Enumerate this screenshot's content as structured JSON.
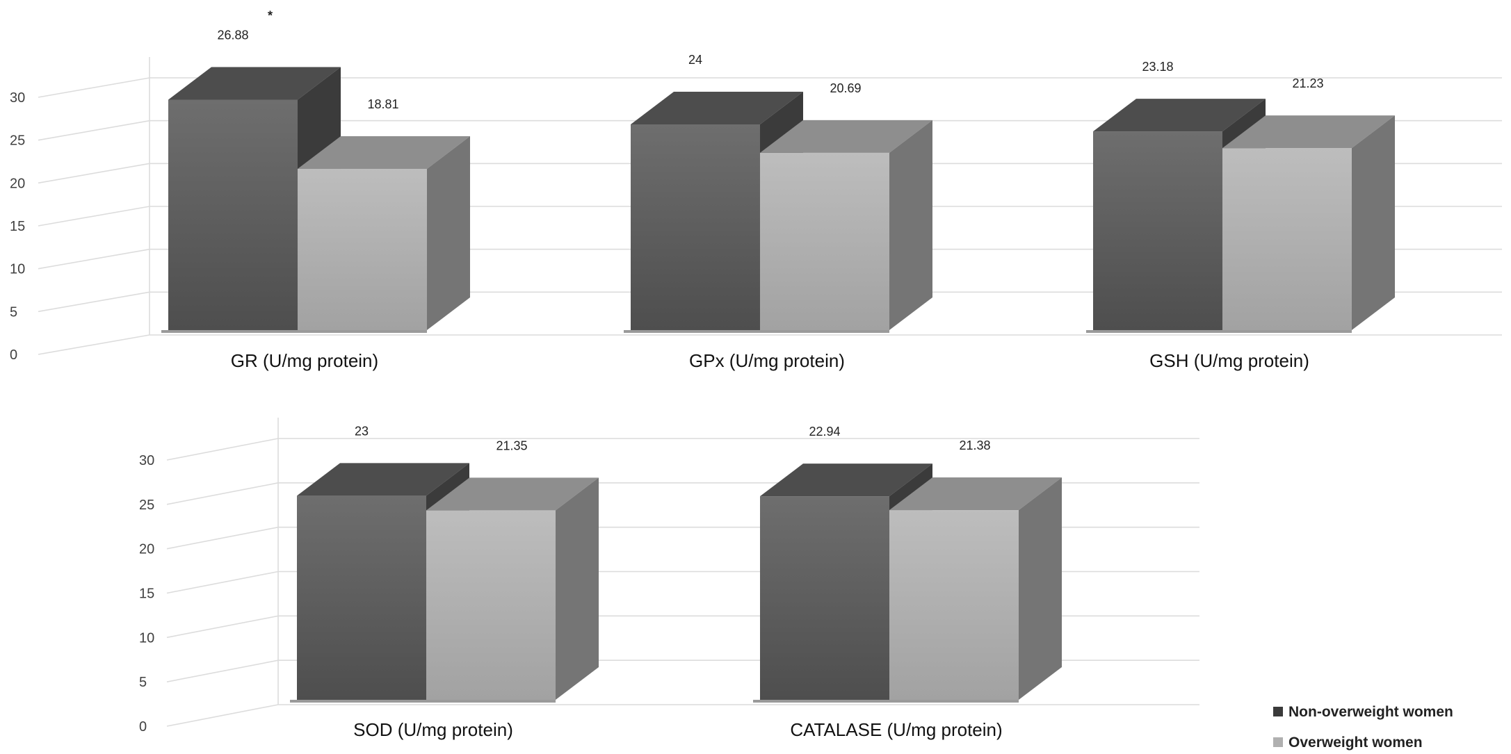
{
  "chart_data": [
    {
      "type": "bar",
      "categories": [
        "GR (U/mg protein)",
        "GPx (U/mg protein)",
        "GSH (U/mg protein)"
      ],
      "series": [
        {
          "name": "Non-overweight women",
          "values": [
            26.88,
            24,
            23.18
          ]
        },
        {
          "name": "Overweight women",
          "values": [
            18.81,
            20.69,
            21.23
          ]
        }
      ],
      "value_labels": [
        [
          "26.88",
          "24",
          "23.18"
        ],
        [
          "18.81",
          "20.69",
          "21.23"
        ]
      ],
      "annotations": [
        {
          "category": "GR (U/mg protein)",
          "text": "*"
        }
      ],
      "yticks": [
        "0",
        "5",
        "10",
        "15",
        "20",
        "25",
        "30"
      ],
      "ylim": [
        0,
        30
      ],
      "grid": true,
      "three_d": true
    },
    {
      "type": "bar",
      "categories": [
        "SOD (U/mg protein)",
        "CATALASE (U/mg protein)"
      ],
      "series": [
        {
          "name": "Non-overweight women",
          "values": [
            23,
            22.94
          ]
        },
        {
          "name": "Overweight women",
          "values": [
            21.35,
            21.38
          ]
        }
      ],
      "value_labels": [
        [
          "23",
          "22.94"
        ],
        [
          "21.35",
          "21.38"
        ]
      ],
      "yticks": [
        "0",
        "5",
        "10",
        "15",
        "20",
        "25",
        "30"
      ],
      "ylim": [
        0,
        30
      ],
      "grid": true,
      "three_d": true
    }
  ],
  "legend": {
    "position": "bottom-right",
    "items": [
      {
        "label": "Non-overweight women",
        "color": "#3a3a3a"
      },
      {
        "label": "Overweight women",
        "color": "#b0b0b0"
      }
    ]
  },
  "colors": {
    "dark_front_top": "#6e6e6e",
    "dark_front_bottom": "#4e4e4e",
    "dark_top": "#4d4d4d",
    "dark_side": "#3b3b3b",
    "light_front_top": "#bdbdbd",
    "light_front_bottom": "#a2a2a2",
    "light_top": "#8e8e8e",
    "light_side": "#757575",
    "grid": "#dcdcdc"
  }
}
